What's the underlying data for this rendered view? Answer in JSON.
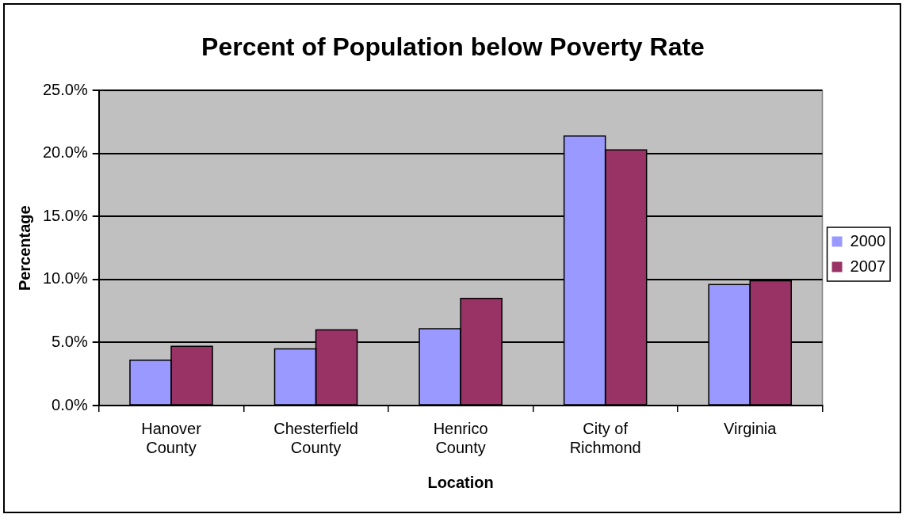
{
  "chart_data": {
    "type": "bar",
    "title": "Percent of Population below Poverty Rate",
    "xlabel": "Location",
    "ylabel": "Percentage",
    "categories": [
      "Hanover County",
      "Chesterfield County",
      "Henrico County",
      "City of Richmond",
      "Virginia"
    ],
    "series": [
      {
        "name": "2000",
        "color": "#9999ff",
        "values": [
          3.6,
          4.5,
          6.1,
          21.4,
          9.6
        ]
      },
      {
        "name": "2007",
        "color": "#993366",
        "values": [
          4.7,
          6.0,
          8.5,
          20.3,
          9.9
        ]
      }
    ],
    "ylim": [
      0,
      25
    ],
    "yticks": [
      {
        "value": 0,
        "label": "0.0%"
      },
      {
        "value": 5,
        "label": "5.0%"
      },
      {
        "value": 10,
        "label": "10.0%"
      },
      {
        "value": 15,
        "label": "15.0%"
      },
      {
        "value": 20,
        "label": "20.0%"
      },
      {
        "value": 25,
        "label": "25.0%"
      }
    ],
    "grid": "y",
    "legend": "right"
  }
}
